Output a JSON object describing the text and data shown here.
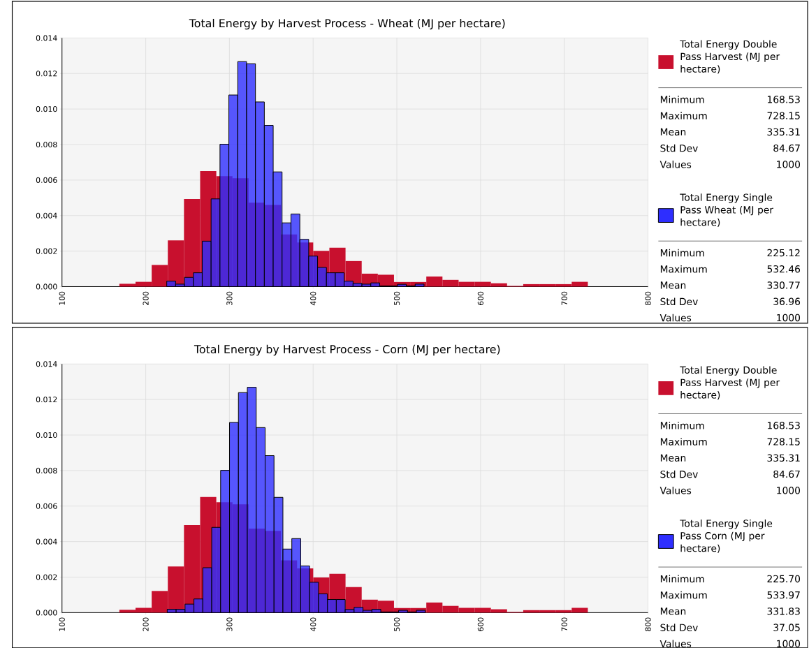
{
  "chart_data": [
    {
      "type": "histogram",
      "title": "Total Energy by Harvest Process - Wheat (MJ per hectare)",
      "xlim": [
        100,
        800
      ],
      "xticks": [
        100,
        200,
        300,
        400,
        500,
        600,
        700,
        800
      ],
      "ylim": [
        0,
        0.014
      ],
      "yticks": [
        {
          "value": 0,
          "label": "0.000"
        },
        {
          "value": 0.002,
          "label": "0.002"
        },
        {
          "value": 0.004,
          "label": "0.004"
        },
        {
          "value": 0.006,
          "label": "0.006"
        },
        {
          "value": 0.008,
          "label": "0.008"
        },
        {
          "value": 0.01,
          "label": "0.010"
        },
        {
          "value": 0.012,
          "label": "0.012"
        },
        {
          "value": 0.014,
          "label": "0.014"
        }
      ],
      "grid": true,
      "legend": "right",
      "bins": [
        168.53,
        187.83,
        207.12,
        226.42,
        245.72,
        265.02,
        284.31,
        303.61,
        322.91,
        342.2,
        361.5,
        380.8,
        400.1,
        419.39,
        438.69,
        457.99,
        477.29,
        496.58,
        515.88,
        535.18,
        554.47,
        573.77,
        593.07,
        612.37,
        631.66,
        650.96,
        670.26,
        689.55,
        708.85,
        728.15
      ],
      "series": [
        {
          "name": "Total Energy Double Pass Harvest (MJ per hectare)",
          "color": "#c8102e",
          "values": [
            0.00016,
            0.00027,
            0.00122,
            0.0026,
            0.00493,
            0.00651,
            0.00622,
            0.0061,
            0.00473,
            0.0046,
            0.00294,
            0.00249,
            0.00201,
            0.00219,
            0.00144,
            0.00073,
            0.00067,
            0.00026,
            0.00026,
            0.00057,
            0.00038,
            0.00027,
            0.00027,
            0.00019,
            4e-05,
            0.00014,
            0.00014,
            0.00014,
            0.00027
          ]
        },
        {
          "name": "Total Energy Single Pass Wheat (MJ per hectare)",
          "color": "#2e2eff",
          "bins": [
            225.12,
            235.72,
            246.32,
            256.91,
            267.51,
            278.11,
            288.71,
            299.31,
            309.9,
            320.5,
            331.1,
            341.7,
            352.29,
            362.89,
            373.49,
            384.09,
            394.69,
            405.28,
            415.88,
            426.48,
            437.08,
            447.68,
            458.27,
            468.87,
            479.47,
            490.07,
            500.67,
            511.26,
            521.86,
            532.46
          ],
          "values": [
            0.00031,
            0.00014,
            0.00052,
            0.00078,
            0.00256,
            0.00494,
            0.00802,
            0.01079,
            0.01267,
            0.01255,
            0.0104,
            0.00908,
            0.00646,
            0.00359,
            0.00409,
            0.00266,
            0.00172,
            0.00108,
            0.00078,
            0.00078,
            0.00031,
            0.00019,
            0.00014,
            0.00021,
            4e-05,
            4e-05,
            0.00013,
            4e-05,
            0.00014
          ]
        }
      ],
      "annotations": [
        "Minimum",
        "168.53",
        "Maximum",
        "728.15",
        "Mean",
        "335.31",
        "Std Dev",
        "84.67",
        "Values",
        "1000",
        "Minimum",
        "225.12",
        "Maximum",
        "532.46",
        "Mean",
        "330.77",
        "Std Dev",
        "36.96",
        "Values",
        "1000"
      ]
    },
    {
      "type": "histogram",
      "title": "Total Energy by Harvest Process - Corn (MJ per hectare)",
      "xlim": [
        100,
        800
      ],
      "xticks": [
        100,
        200,
        300,
        400,
        500,
        600,
        700,
        800
      ],
      "ylim": [
        0,
        0.014
      ],
      "yticks": [
        {
          "value": 0,
          "label": "0.000"
        },
        {
          "value": 0.002,
          "label": "0.002"
        },
        {
          "value": 0.004,
          "label": "0.004"
        },
        {
          "value": 0.006,
          "label": "0.006"
        },
        {
          "value": 0.008,
          "label": "0.008"
        },
        {
          "value": 0.01,
          "label": "0.010"
        },
        {
          "value": 0.012,
          "label": "0.012"
        },
        {
          "value": 0.014,
          "label": "0.014"
        }
      ],
      "grid": true,
      "legend": "right",
      "bins": [
        168.53,
        187.83,
        207.12,
        226.42,
        245.72,
        265.02,
        284.31,
        303.61,
        322.91,
        342.2,
        361.5,
        380.8,
        400.1,
        419.39,
        438.69,
        457.99,
        477.29,
        496.58,
        515.88,
        535.18,
        554.47,
        573.77,
        593.07,
        612.37,
        631.66,
        650.96,
        670.26,
        689.55,
        708.85,
        728.15
      ],
      "series": [
        {
          "name": "Total Energy Double Pass Harvest (MJ per hectare)",
          "color": "#c8102e",
          "values": [
            0.00016,
            0.00027,
            0.00122,
            0.0026,
            0.00493,
            0.00651,
            0.00622,
            0.0061,
            0.00473,
            0.0046,
            0.00294,
            0.00249,
            0.00198,
            0.00219,
            0.00144,
            0.00073,
            0.00067,
            0.00026,
            0.00026,
            0.00057,
            0.00038,
            0.00027,
            0.00027,
            0.00019,
            4e-05,
            0.00014,
            0.00014,
            0.00014,
            0.00027
          ]
        },
        {
          "name": "Total Energy Single Pass Corn (MJ per hectare)",
          "color": "#2e2eff",
          "bins": [
            225.7,
            236.33,
            246.96,
            257.59,
            268.22,
            278.85,
            289.48,
            300.11,
            310.74,
            321.37,
            332.0,
            342.63,
            353.26,
            363.89,
            374.52,
            385.15,
            395.78,
            406.41,
            417.04,
            427.67,
            438.3,
            448.93,
            459.56,
            470.19,
            480.82,
            491.45,
            502.08,
            512.71,
            523.34,
            533.97
          ],
          "values": [
            0.00019,
            0.00019,
            0.00048,
            0.00077,
            0.00253,
            0.0048,
            0.00801,
            0.01071,
            0.01239,
            0.01269,
            0.01042,
            0.00884,
            0.00649,
            0.00358,
            0.00417,
            0.00263,
            0.00171,
            0.00106,
            0.00074,
            0.00074,
            0.00018,
            0.0003,
            0.00013,
            0.00019,
            4e-05,
            4e-05,
            0.00013,
            4e-05,
            0.00013
          ]
        }
      ],
      "annotations": [
        "Minimum",
        "168.53",
        "Maximum",
        "728.15",
        "Mean",
        "335.31",
        "Std Dev",
        "84.67",
        "Values",
        "1000",
        "Minimum",
        "225.70",
        "Maximum",
        "533.97",
        "Mean",
        "331.83",
        "Std Dev",
        "37.05",
        "Values",
        "1000"
      ]
    }
  ]
}
